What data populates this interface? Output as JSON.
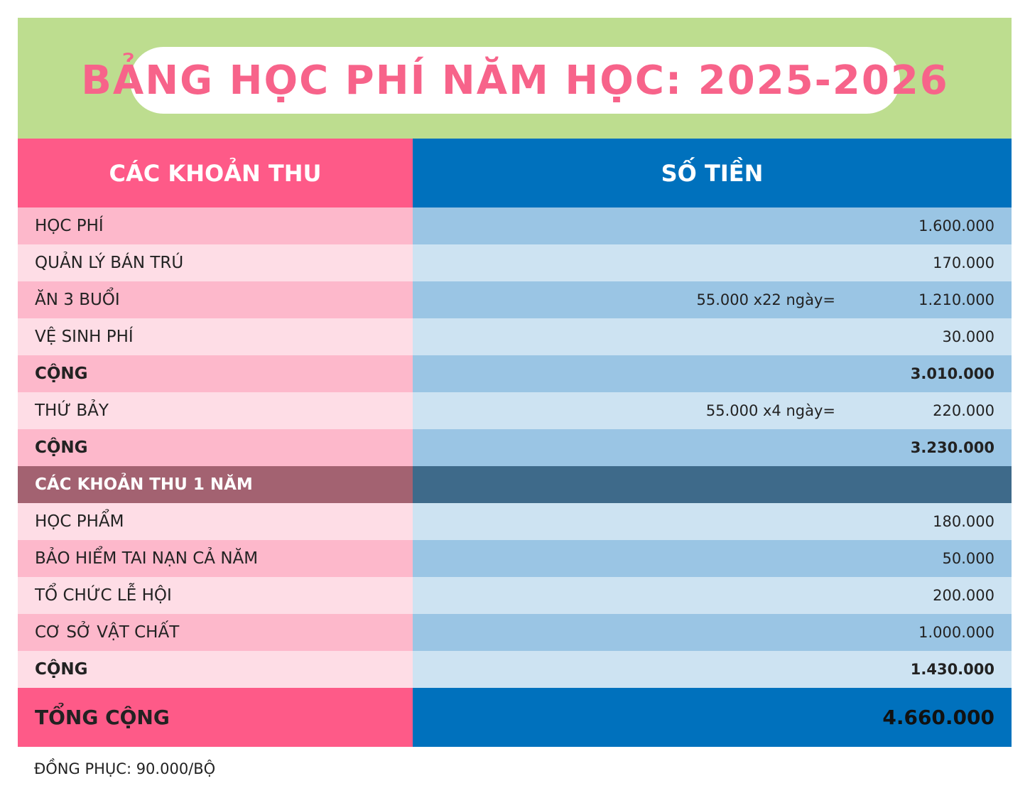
{
  "title": "BẢNG HỌC PHÍ NĂM HỌC: 2025-2026",
  "header": {
    "col_items": "CÁC KHOẢN THU",
    "col_amount": "SỐ TIỀN"
  },
  "rows": [
    {
      "label": "HỌC PHÍ",
      "calc": "",
      "amount": "1.600.000"
    },
    {
      "label": "QUẢN LÝ BÁN TRÚ",
      "calc": "",
      "amount": "170.000"
    },
    {
      "label": "ĂN 3 BUỔI",
      "calc": "55.000 x22 ngày=",
      "amount": "1.210.000"
    },
    {
      "label": "VỆ SINH PHÍ",
      "calc": "",
      "amount": "30.000"
    },
    {
      "label": "CỘNG",
      "calc": "",
      "amount": "3.010.000"
    },
    {
      "label": "THỨ BẢY",
      "calc": "55.000 x4 ngày=",
      "amount": "220.000"
    },
    {
      "label": "CỘNG",
      "calc": "",
      "amount": "3.230.000"
    }
  ],
  "section": {
    "label": "CÁC KHOẢN THU 1 NĂM"
  },
  "rows2": [
    {
      "label": "HỌC PHẨM",
      "amount": "180.000"
    },
    {
      "label": "BẢO HIỂM TAI NẠN CẢ NĂM",
      "amount": "50.000"
    },
    {
      "label": "TỔ CHỨC LỄ HỘI",
      "amount": "200.000"
    },
    {
      "label": "CƠ SỞ VẬT CHẤT",
      "amount": "1.000.000"
    },
    {
      "label": "CỘNG",
      "amount": "1.430.000"
    }
  ],
  "total": {
    "label": "TỔNG CỘNG",
    "amount": "4.660.000"
  },
  "footnote": "ĐỒNG PHỤC: 90.000/BỘ",
  "colors": {
    "pink": "#fe5a88",
    "blue": "#0071bd",
    "green": "#bddd8f",
    "title": "#f7638a"
  }
}
